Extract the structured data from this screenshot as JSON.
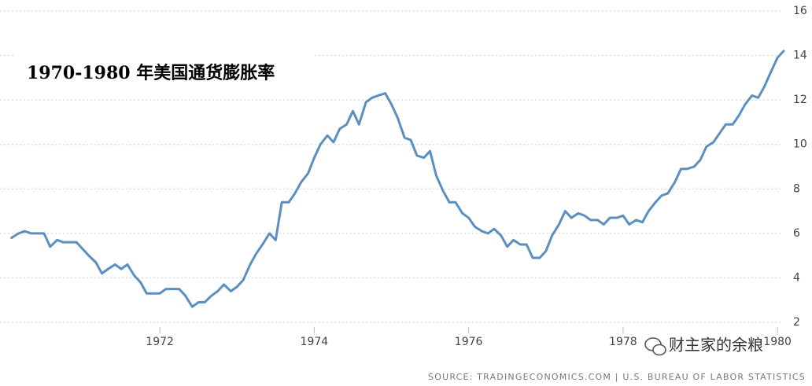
{
  "chart_data": {
    "type": "line",
    "title": "1970-1980 年美国通货膨胀率",
    "source": "SOURCE: TRADINGECONOMICS.COM | U.S. BUREAU OF LABOR STATISTICS",
    "watermark": "财主家的余粮",
    "x": [
      1970.08,
      1970.17,
      1970.25,
      1970.33,
      1970.42,
      1970.5,
      1970.58,
      1970.67,
      1970.75,
      1970.83,
      1970.92,
      1971.0,
      1971.08,
      1971.17,
      1971.25,
      1971.33,
      1971.42,
      1971.5,
      1971.58,
      1971.67,
      1971.75,
      1971.83,
      1971.92,
      1972.0,
      1972.08,
      1972.17,
      1972.25,
      1972.33,
      1972.42,
      1972.5,
      1972.58,
      1972.67,
      1972.75,
      1972.83,
      1972.92,
      1973.0,
      1973.08,
      1973.17,
      1973.25,
      1973.33,
      1973.42,
      1973.5,
      1973.58,
      1973.67,
      1973.75,
      1973.83,
      1973.92,
      1974.0,
      1974.08,
      1974.17,
      1974.25,
      1974.33,
      1974.42,
      1974.5,
      1974.58,
      1974.67,
      1974.75,
      1974.83,
      1974.92,
      1975.0,
      1975.08,
      1975.17,
      1975.25,
      1975.33,
      1975.42,
      1975.5,
      1975.58,
      1975.67,
      1975.75,
      1975.83,
      1975.92,
      1976.0,
      1976.08,
      1976.17,
      1976.25,
      1976.33,
      1976.42,
      1976.5,
      1976.58,
      1976.67,
      1976.75,
      1976.83,
      1976.92,
      1977.0,
      1977.08,
      1977.17,
      1977.25,
      1977.33,
      1977.42,
      1977.5,
      1977.58,
      1977.67,
      1977.75,
      1977.83,
      1977.92,
      1978.0,
      1978.08,
      1978.17,
      1978.25,
      1978.33,
      1978.42,
      1978.5,
      1978.58,
      1978.67,
      1978.75,
      1978.83,
      1978.92,
      1979.0,
      1979.08,
      1979.17,
      1979.25,
      1979.33,
      1979.42,
      1979.5,
      1979.58,
      1979.67,
      1979.75,
      1979.83,
      1979.92,
      1980.0,
      1980.08
    ],
    "series": [
      {
        "name": "Inflation",
        "color": "#5b8fc0",
        "values": [
          5.8,
          6.0,
          6.1,
          6.0,
          6.0,
          6.0,
          5.4,
          5.7,
          5.6,
          5.6,
          5.6,
          5.3,
          5.0,
          4.7,
          4.2,
          4.4,
          4.6,
          4.4,
          4.6,
          4.1,
          3.8,
          3.3,
          3.3,
          3.3,
          3.5,
          3.5,
          3.5,
          3.2,
          2.7,
          2.9,
          2.9,
          3.2,
          3.4,
          3.7,
          3.4,
          3.6,
          3.9,
          4.6,
          5.1,
          5.5,
          6.0,
          5.7,
          7.4,
          7.4,
          7.8,
          8.3,
          8.7,
          9.4,
          10.0,
          10.4,
          10.1,
          10.7,
          10.9,
          11.5,
          10.9,
          11.9,
          12.1,
          12.2,
          12.3,
          11.8,
          11.2,
          10.3,
          10.2,
          9.5,
          9.4,
          9.7,
          8.6,
          7.9,
          7.4,
          7.4,
          6.9,
          6.7,
          6.3,
          6.1,
          6.0,
          6.2,
          5.9,
          5.4,
          5.7,
          5.5,
          5.5,
          4.9,
          4.9,
          5.2,
          5.9,
          6.4,
          7.0,
          6.7,
          6.9,
          6.8,
          6.6,
          6.6,
          6.4,
          6.7,
          6.7,
          6.8,
          6.4,
          6.6,
          6.5,
          7.0,
          7.4,
          7.7,
          7.8,
          8.3,
          8.9,
          8.9,
          9.0,
          9.3,
          9.9,
          10.1,
          10.5,
          10.9,
          10.9,
          11.3,
          11.8,
          12.2,
          12.1,
          12.6,
          13.3,
          13.9,
          14.2
        ]
      }
    ],
    "xlim": [
      1969.93,
      1980.07
    ],
    "xticks": [
      1972,
      1974,
      1976,
      1978,
      1980
    ],
    "ylim": [
      2,
      16
    ],
    "yticks": [
      2,
      4,
      6,
      8,
      10,
      12,
      14,
      16
    ],
    "grid": true
  }
}
